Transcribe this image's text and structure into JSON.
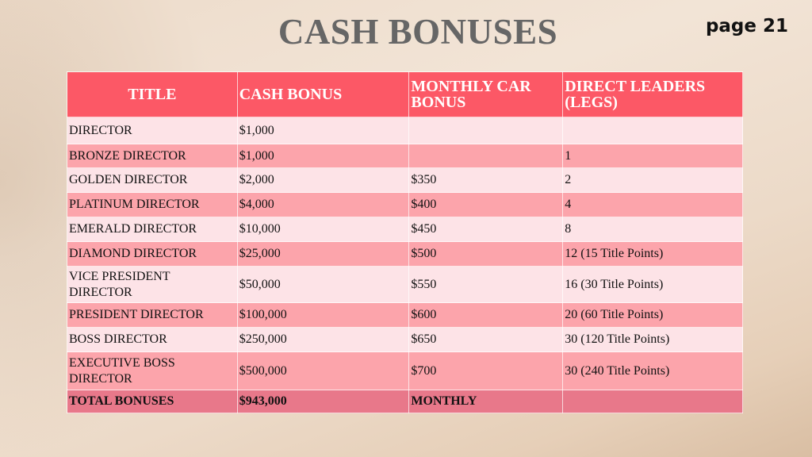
{
  "title": "CASH BONUSES",
  "page_label": "page 21",
  "table": {
    "headers": [
      "TITLE",
      "CASH BONUS",
      "MONTHLY CAR BONUS",
      "DIRECT LEADERS (LEGS)"
    ],
    "rows": [
      [
        "DIRECTOR",
        "$1,000",
        "",
        ""
      ],
      [
        "BRONZE DIRECTOR",
        "$1,000",
        "",
        "1"
      ],
      [
        "GOLDEN DIRECTOR",
        "$2,000",
        "$350",
        "2"
      ],
      [
        "PLATINUM DIRECTOR",
        "$4,000",
        "$400",
        "4"
      ],
      [
        "EMERALD DIRECTOR",
        "$10,000",
        "$450",
        "8"
      ],
      [
        "DIAMOND DIRECTOR",
        "$25,000",
        "$500",
        "12 (15 Title Points)"
      ],
      [
        "VICE PRESIDENT DIRECTOR",
        "$50,000",
        "$550",
        "16 (30 Title Points)"
      ],
      [
        "PRESIDENT DIRECTOR",
        "$100,000",
        "$600",
        "20 (60 Title Points)"
      ],
      [
        "BOSS DIRECTOR",
        "$250,000",
        "$650",
        "30 (120 Title Points)"
      ],
      [
        "EXECUTIVE BOSS DIRECTOR",
        "$500,000",
        "$700",
        "30 (240 Title Points)"
      ]
    ],
    "total": [
      "TOTAL BONUSES",
      "$943,000",
      "MONTHLY",
      ""
    ]
  },
  "colors": {
    "header": "#fc5866",
    "row_light": "#fde3e7",
    "row_dark": "#fca4ab",
    "total": "#e8788a"
  }
}
